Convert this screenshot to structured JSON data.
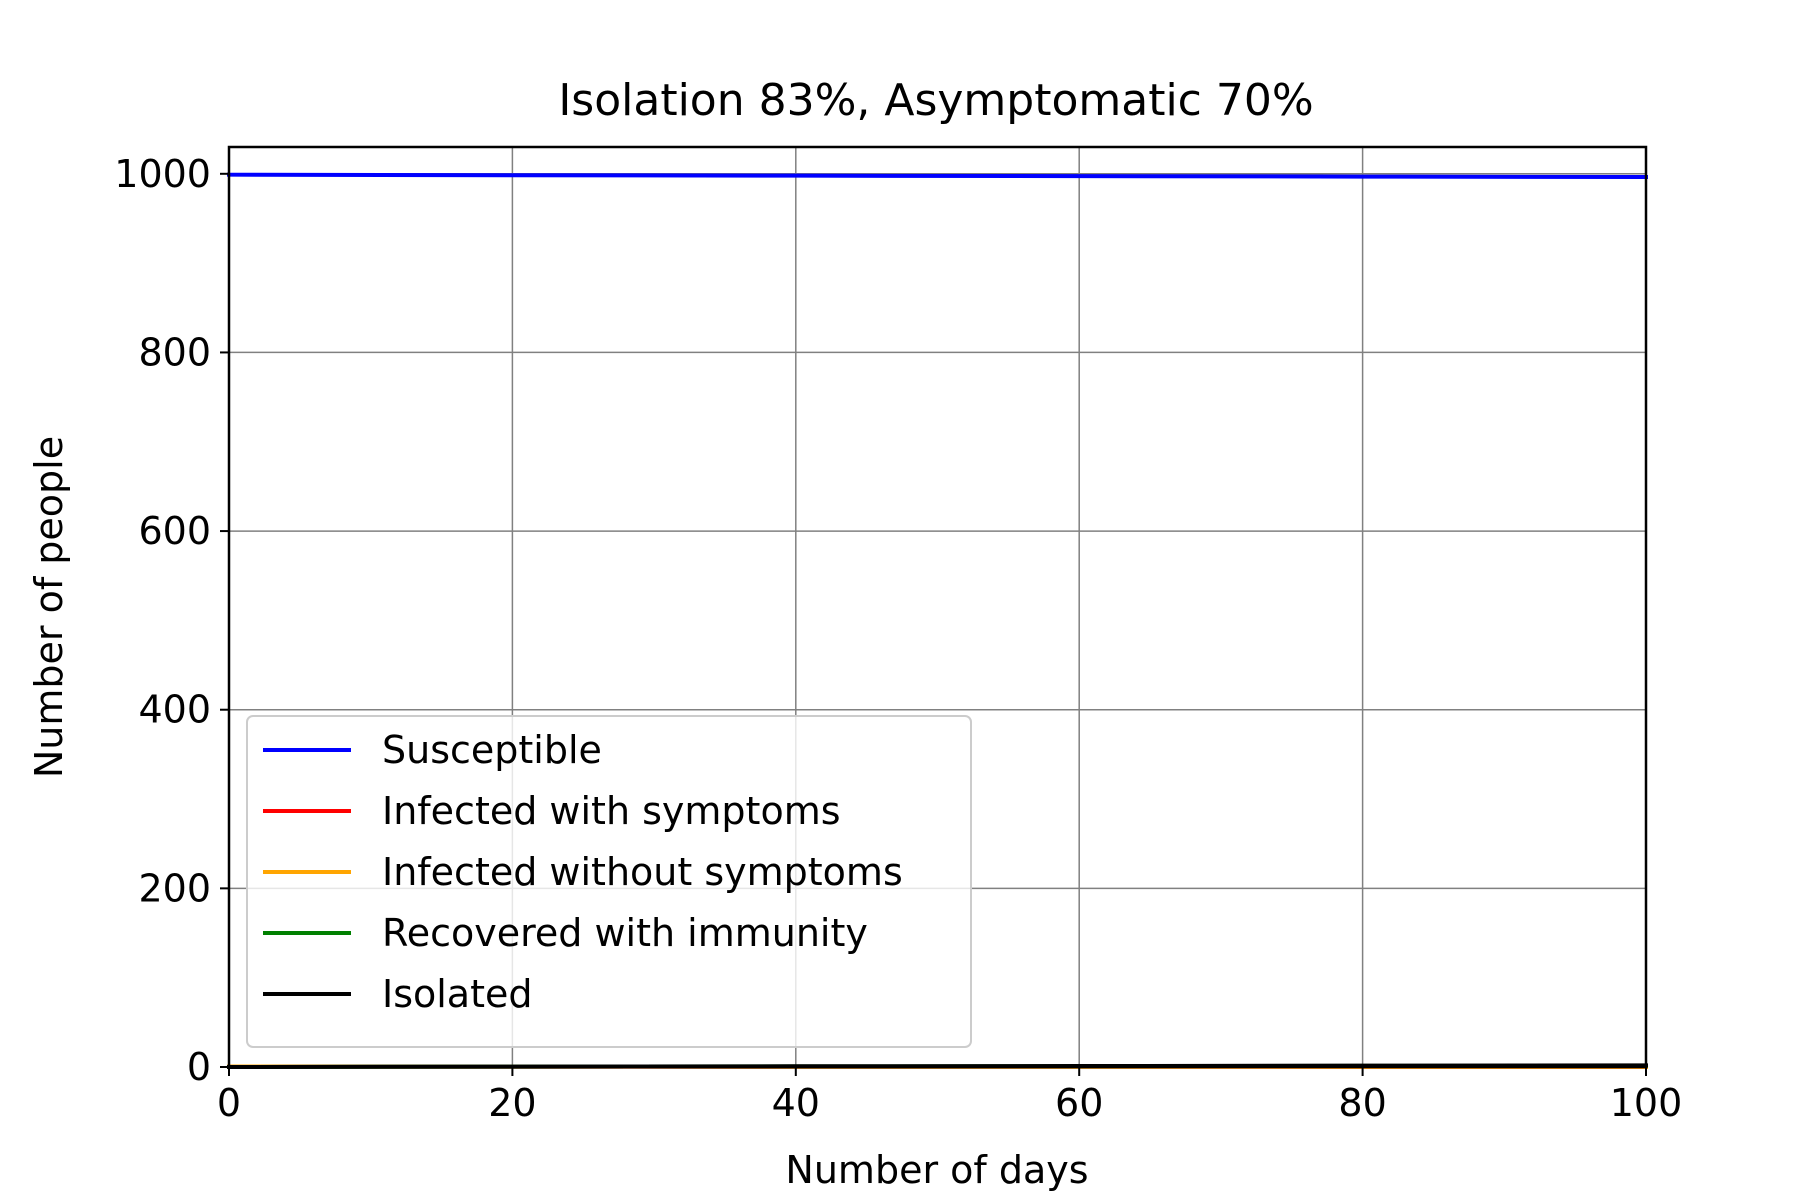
{
  "chart_data": {
    "type": "line",
    "title": "Isolation 83%, Asymptomatic 70%",
    "xlabel": "Number of days",
    "ylabel": "Number of people",
    "xlim": [
      0,
      100
    ],
    "ylim": [
      0,
      1030
    ],
    "xticks": [
      0,
      20,
      40,
      60,
      80,
      100
    ],
    "yticks": [
      0,
      200,
      400,
      600,
      800,
      1000
    ],
    "grid": true,
    "legend_position": "lower-left",
    "series": [
      {
        "name": "Susceptible",
        "color": "#0000ff",
        "x": [
          0,
          20,
          40,
          60,
          80,
          100
        ],
        "y": [
          999,
          998.4,
          997.9,
          997.4,
          996.9,
          996.4
        ]
      },
      {
        "name": "Infected with symptoms",
        "color": "#ff0000",
        "x": [
          0,
          20,
          40,
          60,
          80,
          100
        ],
        "y": [
          0.5,
          0.4,
          0.3,
          0.3,
          0.2,
          0.2
        ]
      },
      {
        "name": "Infected without symptoms",
        "color": "#ffa500",
        "x": [
          0,
          20,
          40,
          60,
          80,
          100
        ],
        "y": [
          0.5,
          0.4,
          0.3,
          0.3,
          0.2,
          0.2
        ]
      },
      {
        "name": "Recovered with immunity",
        "color": "#008000",
        "x": [
          0,
          20,
          40,
          60,
          80,
          100
        ],
        "y": [
          0,
          0.4,
          0.7,
          0.9,
          1.2,
          1.4
        ]
      },
      {
        "name": "Isolated",
        "color": "#000000",
        "x": [
          0,
          20,
          40,
          60,
          80,
          100
        ],
        "y": [
          0,
          0.4,
          0.8,
          1.1,
          1.5,
          1.8
        ]
      }
    ]
  }
}
